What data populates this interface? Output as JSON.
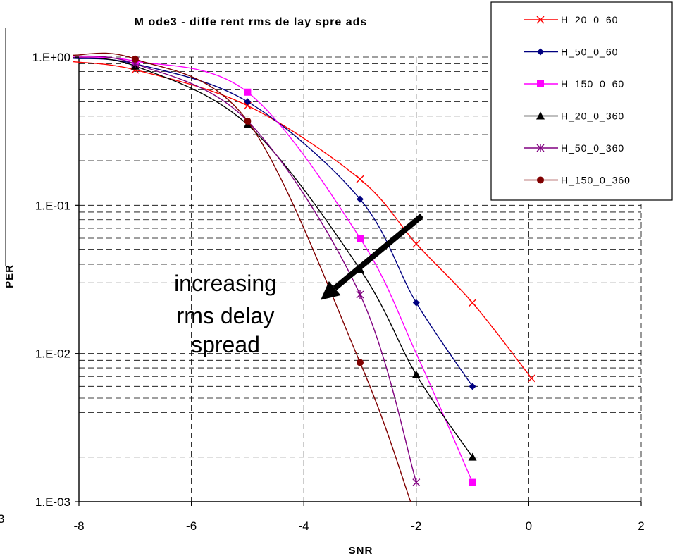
{
  "chart_data": {
    "type": "line",
    "title": "M ode3 - diffe rent rms de lay spre ads",
    "xlabel": "SNR",
    "ylabel": "PER",
    "xlim": [
      -8,
      2
    ],
    "ylim": [
      0.001,
      1
    ],
    "yscale": "log",
    "x_ticks": [
      -8,
      -6,
      -4,
      -2,
      0,
      2
    ],
    "x_tick_labels": [
      "-8",
      "-6",
      "-4",
      "-2",
      "0",
      "2"
    ],
    "y_ticks": [
      1,
      0.1,
      0.01,
      0.001
    ],
    "y_tick_labels": [
      "1.E+00",
      "1.E-01",
      "1.E-02",
      "1.E-03"
    ],
    "grid": "dashed major and minor",
    "legend_position": "top-right",
    "series": [
      {
        "name": "H_20_0_60",
        "color": "#ff0000",
        "marker": "x",
        "points": [
          [
            -8.1,
            0.93
          ],
          [
            -7,
            0.82
          ],
          [
            -5,
            0.47
          ],
          [
            -3,
            0.15
          ],
          [
            -2,
            0.055
          ],
          [
            -1,
            0.022
          ],
          [
            0.05,
            0.0068
          ]
        ],
        "marked": [
          [
            -7,
            0.82
          ],
          [
            -5,
            0.47
          ],
          [
            -3,
            0.15
          ],
          [
            -2,
            0.055
          ],
          [
            -1,
            0.022
          ],
          [
            0.05,
            0.0068
          ]
        ]
      },
      {
        "name": "H_50_0_60",
        "color": "#000080",
        "marker": "diamond",
        "points": [
          [
            -8.1,
            0.98
          ],
          [
            -7,
            0.9
          ],
          [
            -5,
            0.5
          ],
          [
            -3,
            0.11
          ],
          [
            -2,
            0.022
          ],
          [
            -1,
            0.006
          ]
        ],
        "marked": [
          [
            -7,
            0.9
          ],
          [
            -5,
            0.5
          ],
          [
            -3,
            0.11
          ],
          [
            -2,
            0.022
          ],
          [
            -1,
            0.006
          ]
        ]
      },
      {
        "name": "H_150_0_60",
        "color": "#ff00ff",
        "marker": "square",
        "points": [
          [
            -8.1,
            1.0
          ],
          [
            -7,
            0.94
          ],
          [
            -5,
            0.58
          ],
          [
            -3,
            0.06
          ],
          [
            -2,
            0.01
          ],
          [
            -1,
            0.00135
          ]
        ],
        "marked": [
          [
            -7,
            0.94
          ],
          [
            -5,
            0.58
          ],
          [
            -3,
            0.06
          ],
          [
            -1,
            0.00135
          ]
        ]
      },
      {
        "name": "H_20_0_360",
        "color": "#000000",
        "marker": "triangle",
        "points": [
          [
            -8.1,
            0.99
          ],
          [
            -7,
            0.87
          ],
          [
            -5,
            0.35
          ],
          [
            -3,
            0.037
          ],
          [
            -2,
            0.0072
          ],
          [
            -1,
            0.002
          ]
        ],
        "marked": [
          [
            -7,
            0.87
          ],
          [
            -5,
            0.35
          ],
          [
            -3,
            0.037
          ],
          [
            -2,
            0.0072
          ],
          [
            -1,
            0.002
          ]
        ]
      },
      {
        "name": "H_50_0_360",
        "color": "#800080",
        "marker": "star",
        "points": [
          [
            -8.1,
            1.02
          ],
          [
            -7,
            0.9
          ],
          [
            -5,
            0.37
          ],
          [
            -3,
            0.025
          ],
          [
            -2,
            0.00135
          ]
        ],
        "marked": [
          [
            -7,
            0.9
          ],
          [
            -3,
            0.025
          ],
          [
            -2,
            0.00135
          ]
        ]
      },
      {
        "name": "H_150_0_360",
        "color": "#800000",
        "marker": "circle",
        "points": [
          [
            -8.1,
            1.03
          ],
          [
            -7,
            0.97
          ],
          [
            -5,
            0.37
          ],
          [
            -3,
            0.0087
          ],
          [
            -2.1,
            0.001
          ]
        ],
        "marked": [
          [
            -7,
            0.97
          ],
          [
            -5,
            0.37
          ],
          [
            -3,
            0.0087
          ]
        ]
      }
    ],
    "annotation": {
      "lines": [
        "increasing",
        "rms delay",
        "spread"
      ],
      "arrow_from": [
        -1.9,
        0.085
      ],
      "arrow_to": [
        -3.7,
        0.023
      ]
    },
    "stray_labels": [
      "3"
    ]
  }
}
